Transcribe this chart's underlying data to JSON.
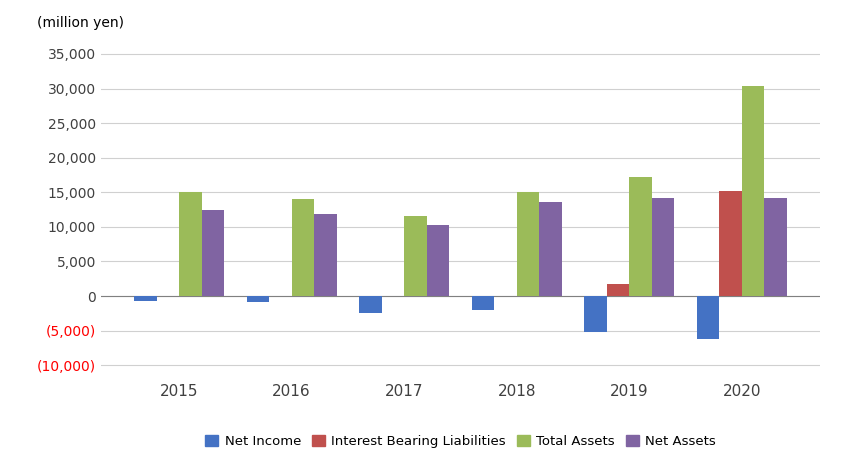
{
  "years": [
    "2015",
    "2016",
    "2017",
    "2018",
    "2019",
    "2020"
  ],
  "net_income": [
    -700,
    -900,
    -2500,
    -2000,
    -5200,
    -6200
  ],
  "interest_bearing_liab": [
    0,
    0,
    0,
    0,
    1800,
    15200
  ],
  "total_assets": [
    15000,
    14000,
    11500,
    15000,
    17200,
    30400
  ],
  "net_assets": [
    12500,
    11800,
    10200,
    13600,
    14200,
    14200
  ],
  "bar_colors": {
    "net_income": "#4472c4",
    "interest_bearing_liab": "#c0504d",
    "total_assets": "#9bbb59",
    "net_assets": "#8064a2"
  },
  "legend_labels": [
    "Net Income",
    "Interest Bearing Liabilities",
    "Total Assets",
    "Net Assets"
  ],
  "ylabel": "(million yen)",
  "ylim": [
    -11500,
    37500
  ],
  "yticks": [
    -10000,
    -5000,
    0,
    5000,
    10000,
    15000,
    20000,
    25000,
    30000,
    35000
  ],
  "background_color": "#ffffff",
  "grid_color": "#d0d0d0"
}
